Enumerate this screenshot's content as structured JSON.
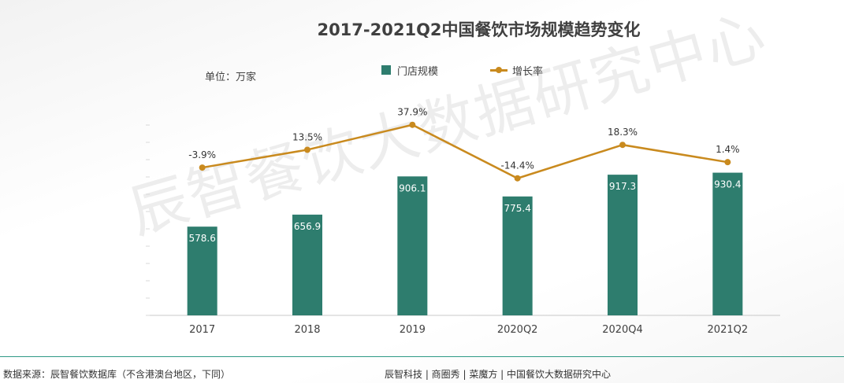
{
  "title": "2017-2021Q2中国餐饮市场规模趋势变化",
  "unit_label": "单位：万家",
  "watermark": "辰智餐饮大数据研究中心",
  "legend": {
    "bar_label": "门店规模",
    "line_label": "增长率"
  },
  "colors": {
    "bar": "#2e7d6e",
    "line": "#c98a1e",
    "footer_rule": "#2e9a86"
  },
  "footer": {
    "source": "数据来源：辰智餐饮数据库（不含港澳台地区，下同）",
    "credits": "辰智科技 | 商圈秀 | 菜魔方 | 中国餐饮大数据研究中心"
  },
  "chart_data": {
    "type": "bar",
    "title": "2017-2021Q2中国餐饮市场规模趋势变化",
    "unit": "单位：万家",
    "categories": [
      "2017",
      "2018",
      "2019",
      "2020Q2",
      "2020Q4",
      "2021Q2"
    ],
    "series": [
      {
        "name": "门店规模",
        "type": "bar",
        "values": [
          578.6,
          656.9,
          906.1,
          775.4,
          917.3,
          930.4
        ],
        "labels": [
          "578.6",
          "656.9",
          "906.1",
          "775.4",
          "917.3",
          "930.4"
        ]
      },
      {
        "name": "增长率",
        "type": "line",
        "values": [
          -3.9,
          13.5,
          37.9,
          -14.4,
          18.3,
          1.4
        ],
        "labels": [
          "-3.9%",
          "13.5%",
          "37.9%",
          "-14.4%",
          "18.3%",
          "1.4%"
        ]
      }
    ],
    "legend_position": "top",
    "grid": false
  }
}
